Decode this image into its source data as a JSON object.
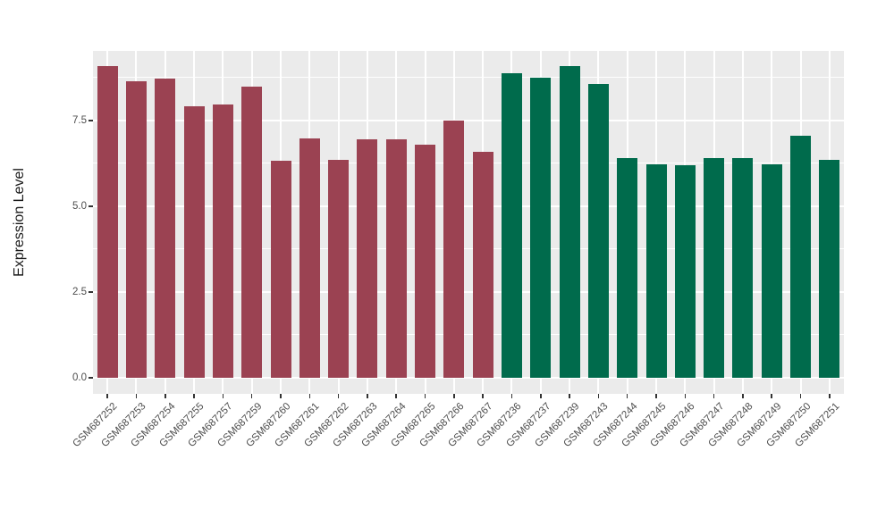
{
  "figure": {
    "background_color": "#FFFFFF"
  },
  "chart_data": {
    "type": "bar",
    "title": "",
    "xlabel": "",
    "ylabel": "Expression Level",
    "legend": "none",
    "grid": true,
    "panel_background_color": "#EBEBEB",
    "grid_color": "#FFFFFF",
    "axis_text_color": "#4D4D4D",
    "tick_mark_color": "#333333",
    "ylim": [
      -0.47,
      9.53
    ],
    "ytick_values": [
      0.0,
      2.5,
      5.0,
      7.5
    ],
    "ytick_labels": [
      "0.0",
      "2.5",
      "5.0",
      "7.5"
    ],
    "minor_ytick_values": [
      1.25,
      3.75,
      6.25,
      8.75
    ],
    "group_colors": {
      "maroon": "#9B4252",
      "green": "#006B4C"
    },
    "bars": [
      {
        "label": "GSM687252",
        "value": 9.1,
        "group": "maroon"
      },
      {
        "label": "GSM687253",
        "value": 8.64,
        "group": "maroon"
      },
      {
        "label": "GSM687254",
        "value": 8.73,
        "group": "maroon"
      },
      {
        "label": "GSM687255",
        "value": 7.92,
        "group": "maroon"
      },
      {
        "label": "GSM687257",
        "value": 7.98,
        "group": "maroon"
      },
      {
        "label": "GSM687259",
        "value": 8.49,
        "group": "maroon"
      },
      {
        "label": "GSM687260",
        "value": 6.32,
        "group": "maroon"
      },
      {
        "label": "GSM687261",
        "value": 6.98,
        "group": "maroon"
      },
      {
        "label": "GSM687262",
        "value": 6.35,
        "group": "maroon"
      },
      {
        "label": "GSM687263",
        "value": 6.94,
        "group": "maroon"
      },
      {
        "label": "GSM687264",
        "value": 6.96,
        "group": "maroon"
      },
      {
        "label": "GSM687265",
        "value": 6.79,
        "group": "maroon"
      },
      {
        "label": "GSM687266",
        "value": 7.51,
        "group": "maroon"
      },
      {
        "label": "GSM687267",
        "value": 6.6,
        "group": "maroon"
      },
      {
        "label": "GSM687236",
        "value": 8.89,
        "group": "green"
      },
      {
        "label": "GSM687237",
        "value": 8.76,
        "group": "green"
      },
      {
        "label": "GSM687239",
        "value": 9.08,
        "group": "green"
      },
      {
        "label": "GSM687243",
        "value": 8.56,
        "group": "green"
      },
      {
        "label": "GSM687244",
        "value": 6.41,
        "group": "green"
      },
      {
        "label": "GSM687245",
        "value": 6.23,
        "group": "green"
      },
      {
        "label": "GSM687246",
        "value": 6.19,
        "group": "green"
      },
      {
        "label": "GSM687247",
        "value": 6.41,
        "group": "green"
      },
      {
        "label": "GSM687248",
        "value": 6.4,
        "group": "green"
      },
      {
        "label": "GSM687249",
        "value": 6.23,
        "group": "green"
      },
      {
        "label": "GSM687250",
        "value": 7.05,
        "group": "green"
      },
      {
        "label": "GSM687251",
        "value": 6.35,
        "group": "green"
      }
    ]
  }
}
